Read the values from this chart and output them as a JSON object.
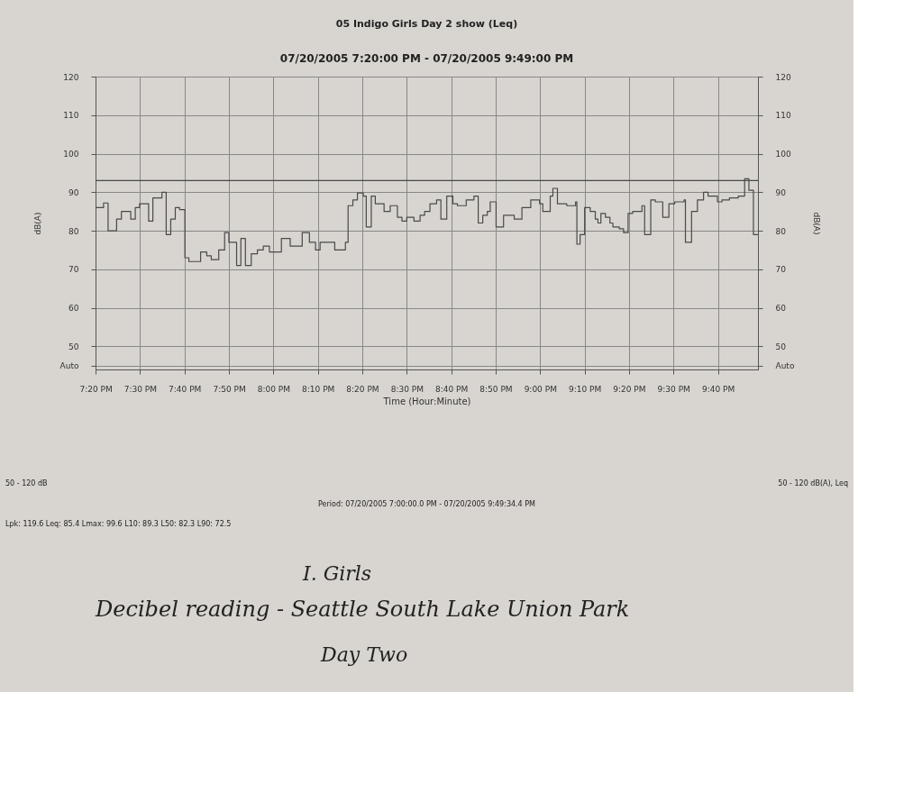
{
  "chart_data": {
    "type": "step",
    "title": "05 Indigo Girls Day 2 show (Leq)",
    "subtitle": "07/20/2005 7:20:00 PM - 07/20/2005 9:49:00 PM",
    "xlabel": "Time (Hour:Minute)",
    "ylabel": "dB(A)",
    "y2label": "dB(A)",
    "x": [
      19.333,
      19.363,
      19.38,
      19.412,
      19.43,
      19.465,
      19.482,
      19.498,
      19.532,
      19.548,
      19.582,
      19.598,
      19.615,
      19.632,
      19.648,
      19.668,
      19.683,
      19.727,
      19.75,
      19.767,
      19.795,
      19.817,
      19.833,
      19.862,
      19.878,
      19.895,
      19.917,
      19.94,
      19.962,
      19.985,
      20.03,
      20.063,
      20.108,
      20.135,
      20.158,
      20.175,
      20.23,
      20.27,
      20.28,
      20.298,
      20.315,
      20.337,
      20.348,
      20.367,
      20.382,
      20.415,
      20.438,
      20.465,
      20.482,
      20.5,
      20.527,
      20.55,
      20.567,
      20.587,
      20.612,
      20.628,
      20.65,
      20.673,
      20.69,
      20.723,
      20.752,
      20.768,
      20.785,
      20.802,
      20.813,
      20.835,
      20.863,
      20.903,
      20.932,
      20.965,
      20.998,
      21.01,
      21.038,
      21.048,
      21.065,
      21.1,
      21.133,
      21.138,
      21.15,
      21.167,
      21.188,
      21.207,
      21.217,
      21.228,
      21.245,
      21.262,
      21.273,
      21.297,
      21.313,
      21.33,
      21.347,
      21.382,
      21.392,
      21.415,
      21.432,
      21.46,
      21.483,
      21.505,
      21.54,
      21.545,
      21.568,
      21.59,
      21.613,
      21.63,
      21.665,
      21.682,
      21.71,
      21.743,
      21.767,
      21.783,
      21.8,
      21.817
    ],
    "series": [
      {
        "color": "#4a4a4a",
        "values": [
          86,
          87.2,
          80,
          83,
          85,
          83,
          86,
          87,
          82.5,
          88.5,
          90,
          79,
          83,
          86,
          85.5,
          73,
          72,
          74.5,
          73.5,
          72.5,
          75,
          79.5,
          77,
          71,
          78,
          71,
          74,
          75,
          76,
          74.5,
          78,
          76,
          79.5,
          77,
          75,
          77,
          75,
          77,
          86.5,
          88,
          89.8,
          89,
          81,
          89,
          87,
          85,
          86.5,
          83.5,
          82.5,
          83.5,
          82.5,
          84,
          85,
          87,
          88,
          83,
          89,
          87,
          86.5,
          88,
          89,
          82,
          84,
          85,
          87.5,
          81,
          84,
          83,
          86,
          88,
          87,
          85,
          89,
          91,
          87,
          86.5,
          87.5,
          76.5,
          79,
          86,
          85,
          83,
          82,
          84.5,
          83.5,
          82,
          81,
          80.5,
          79.5,
          84.5,
          85,
          86.5,
          79,
          88,
          87.5,
          83.5,
          87,
          87.5,
          88,
          77,
          85,
          88,
          90,
          89,
          87.5,
          88,
          88.5,
          89,
          93.5,
          90.5,
          79,
          79
        ]
      }
    ],
    "xlim": [
      19.333,
      21.817
    ],
    "xticks": [
      {
        "value": 19.3333,
        "label": "7:20 PM"
      },
      {
        "value": 19.5,
        "label": "7:30 PM"
      },
      {
        "value": 19.6667,
        "label": "7:40 PM"
      },
      {
        "value": 19.8333,
        "label": "7:50 PM"
      },
      {
        "value": 20,
        "label": "8:00 PM"
      },
      {
        "value": 20.1667,
        "label": "8:10 PM"
      },
      {
        "value": 20.3333,
        "label": "8:20 PM"
      },
      {
        "value": 20.5,
        "label": "8:30 PM"
      },
      {
        "value": 20.6667,
        "label": "8:40 PM"
      },
      {
        "value": 20.8333,
        "label": "8:50 PM"
      },
      {
        "value": 21,
        "label": "9:00 PM"
      },
      {
        "value": 21.1667,
        "label": "9:10 PM"
      },
      {
        "value": 21.3333,
        "label": "9:20 PM"
      },
      {
        "value": 21.5,
        "label": "9:30 PM"
      },
      {
        "value": 21.6667,
        "label": "9:40 PM"
      }
    ],
    "ylim": [
      44,
      120
    ],
    "yticks": [
      {
        "value": 45,
        "label": "Auto"
      },
      50,
      60,
      70,
      80,
      90,
      100,
      110,
      120
    ],
    "y2lim": [
      44,
      120
    ],
    "y2ticks": [
      {
        "value": 45,
        "label": "Auto"
      },
      50,
      60,
      70,
      80,
      90,
      100,
      110,
      120
    ],
    "ref_lines": [
      {
        "axis": "y",
        "value": 93,
        "color": "#4a4a4a"
      }
    ],
    "grid": true,
    "line_style": "solid",
    "marker": "none",
    "annotations": [
      "50 - 120 dB",
      "50 - 120 dB(A), Leq",
      "Period: 07/20/2005 7:00:00.0 PM - 07/20/2005 9:49:34.4 PM",
      "Lpk:   119.6   Leq:   85.4   Lmax:   99.6   L10:   89.3   L50:   82.3   L90:   72.5",
      "I. Girls",
      "Decibel reading - Seattle South Lake Union Park",
      "Day Two"
    ]
  }
}
